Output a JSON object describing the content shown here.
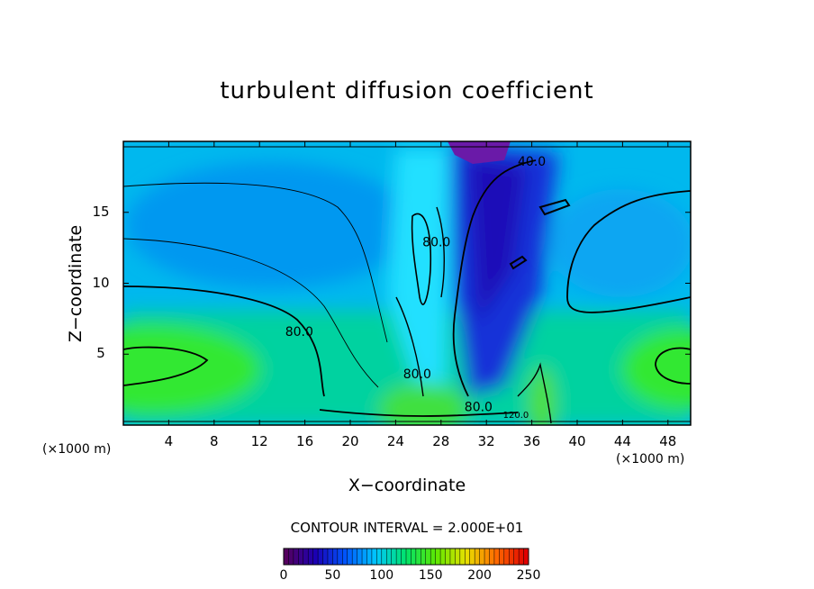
{
  "chart_data": {
    "type": "heatmap",
    "title": "turbulent diffusion coefficient",
    "xlabel": "X−coordinate",
    "ylabel": "Z−coordinate",
    "x_unit_label": "(×1000 m)",
    "y_unit_label": "(×1000 m)",
    "xlim": [
      0,
      50
    ],
    "ylim": [
      0,
      20
    ],
    "xticks": [
      4,
      8,
      12,
      16,
      20,
      24,
      28,
      32,
      36,
      40,
      44,
      48
    ],
    "yticks": [
      5,
      10,
      15
    ],
    "contour_interval_text": "CONTOUR INTERVAL = 2.000E+01",
    "contour_labels": [
      {
        "text": "80.0",
        "x": 15.5,
        "z": 6.3
      },
      {
        "text": "80.0",
        "x": 27.6,
        "z": 12.6
      },
      {
        "text": "80.0",
        "x": 25.9,
        "z": 3.3
      },
      {
        "text": "80.0",
        "x": 31.3,
        "z": 1.0
      },
      {
        "text": "40.0",
        "x": 36.0,
        "z": 18.3
      },
      {
        "text": "120.0",
        "x": 34.6,
        "z": 0.5
      }
    ],
    "colorbar": {
      "min": 0,
      "max": 250,
      "ticks": [
        0,
        50,
        100,
        150,
        200,
        250
      ],
      "colors": [
        "#55005f",
        "#1a00b5",
        "#0058ff",
        "#00c8ff",
        "#00e36a",
        "#5ee800",
        "#e8e100",
        "#ff6a00",
        "#e00000"
      ]
    },
    "field_features": {
      "background_value": 70,
      "cells": [
        {
          "x": 3,
          "z": 3.5,
          "value": 150
        },
        {
          "x": 49,
          "z": 3.5,
          "value": 150
        },
        {
          "x": 26.5,
          "z": 1,
          "value": 130
        },
        {
          "x": 37,
          "z": 1.5,
          "value": 140
        },
        {
          "x": 30.5,
          "z": 19.5,
          "value": 5
        },
        {
          "x": 31.5,
          "z": 14,
          "value": 20
        },
        {
          "x": 36,
          "z": 15,
          "value": 25
        }
      ]
    }
  }
}
